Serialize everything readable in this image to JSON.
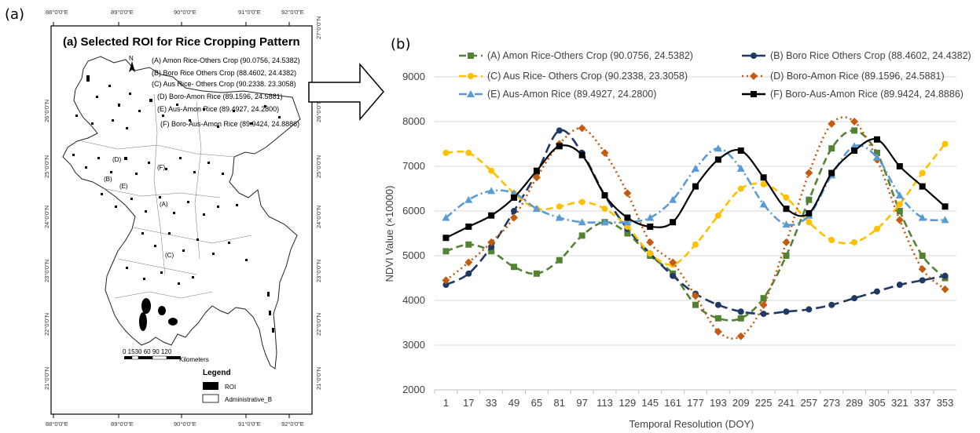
{
  "panels": {
    "left_label": "(a)",
    "right_label": "(b)"
  },
  "map": {
    "title": "(a) Selected ROI for Rice Cropping Pattern",
    "north": "N",
    "top_coords": [
      "88°0'0\"E",
      "89°0'0\"E",
      "90°0'0\"E",
      "91°0'0\"E",
      "92°0'0\"E"
    ],
    "bottom_coords": [
      "88°0'0\"E",
      "89°0'0\"E",
      "90°0'0\"E",
      "91°0'0\"E",
      "92°0'0\"E"
    ],
    "left_coords": [
      "27°0'0\"N",
      "26°0'0\"N",
      "25°0'0\"N",
      "24°0'0\"N",
      "23°0'0\"N",
      "22°0'0\"N",
      "21°0'0\"N"
    ],
    "right_coords": [
      "27°0'0\"N",
      "26°0'0\"N",
      "25°0'0\"N",
      "24°0'0\"N",
      "23°0'0\"N",
      "22°0'0\"N",
      "21°0'0\"N"
    ],
    "roi_list": [
      "(A) Amon Rice-Others Crop (90.0756, 24.5382)",
      "(B) Boro Rice Others Crop (88.4602, 24.4382)",
      "(C) Aus Rice- Others Crop (90.2338. 23.3058)",
      "(D) Boro-Amon Rice (89.1596, 24.5881)",
      "(E) Aus-Amon Rice (89.4927, 24.2800)",
      "(F) Boro-Aus-Amon Rice (89.9424, 24.8886)"
    ],
    "point_labels": [
      "(D)",
      "(F)",
      "(B)",
      "(E)",
      "(A)",
      "(C)"
    ],
    "scale_numbers": "0 1530   60    90   120",
    "scale_unit": "Kilometers",
    "legend_title": "Legend",
    "legend_items": [
      "ROI",
      "Administrative_B"
    ]
  },
  "chart_data": {
    "type": "line",
    "x": [
      1,
      17,
      33,
      49,
      65,
      81,
      97,
      113,
      129,
      145,
      161,
      177,
      193,
      209,
      225,
      241,
      257,
      273,
      289,
      305,
      321,
      337,
      353
    ],
    "xlabel": "Temporal Resolution (DOY)",
    "ylabel": "NDVI Value (×10000)",
    "ylim": [
      2000,
      9000
    ],
    "yticks": [
      2000,
      3000,
      4000,
      5000,
      6000,
      7000,
      8000,
      9000
    ],
    "legend_placement": "top",
    "series": [
      {
        "name": "(A) Amon Rice-Others Crop (90.0756, 24.5382)",
        "color": "#548235",
        "marker": "square",
        "dash": "dash",
        "values": [
          5100,
          5250,
          5100,
          4750,
          4600,
          4900,
          5450,
          5750,
          5500,
          5000,
          4600,
          3900,
          3600,
          3600,
          4050,
          5000,
          6250,
          7400,
          7800,
          7300,
          6000,
          5000,
          4500
        ]
      },
      {
        "name": "(B) Boro Rice Others Crop (88.4602, 24.4382)",
        "color": "#1F3864",
        "marker": "circle",
        "dash": "longdash",
        "values": [
          4350,
          4600,
          5200,
          6000,
          6850,
          7800,
          7300,
          6350,
          5600,
          5050,
          4550,
          4150,
          3900,
          3750,
          3700,
          3750,
          3800,
          3900,
          4050,
          4200,
          4350,
          4450,
          4550
        ]
      },
      {
        "name": "(C) Aus Rice- Others Crop (90.2338, 23.3058)",
        "color": "#FFC000",
        "marker": "circle",
        "dash": "dash",
        "values": [
          7300,
          7300,
          6900,
          6400,
          6050,
          6100,
          6200,
          6050,
          5650,
          5050,
          4800,
          5250,
          5900,
          6500,
          6600,
          6300,
          5750,
          5350,
          5300,
          5600,
          6150,
          6850,
          7500
        ]
      },
      {
        "name": "(D) Boro-Amon Rice (89.1596, 24.5881)",
        "color": "#C55A11",
        "marker": "diamond",
        "dash": "dot",
        "values": [
          4450,
          4850,
          5300,
          5850,
          6750,
          7500,
          7850,
          7300,
          6400,
          5300,
          4850,
          4100,
          3300,
          3200,
          3900,
          5300,
          6850,
          7950,
          8000,
          7150,
          5800,
          4700,
          4250
        ]
      },
      {
        "name": "(E) Aus-Amon Rice (89.4927, 24.2800)",
        "color": "#5B9BD5",
        "marker": "triangle",
        "dash": "dashdot",
        "values": [
          5850,
          6250,
          6450,
          6400,
          6050,
          5850,
          5750,
          5750,
          5750,
          5850,
          6250,
          6950,
          7400,
          6950,
          6150,
          5700,
          5900,
          6800,
          7450,
          7200,
          6350,
          5850,
          5800
        ]
      },
      {
        "name": "(F) Boro-Aus-Amon Rice (89.9424, 24.8886)",
        "color": "#000000",
        "marker": "square",
        "dash": "solid",
        "values": [
          5400,
          5650,
          5900,
          6300,
          6900,
          7450,
          7250,
          6350,
          5850,
          5650,
          5750,
          6550,
          7150,
          7350,
          6750,
          6050,
          5950,
          6850,
          7350,
          7600,
          7000,
          6550,
          6100
        ]
      }
    ]
  }
}
